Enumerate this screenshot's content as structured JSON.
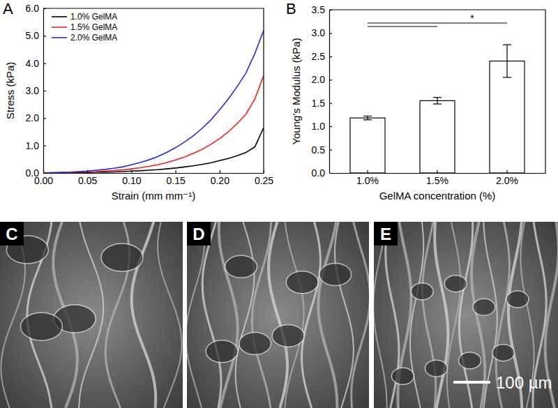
{
  "chart_data": [
    {
      "type": "line",
      "x_label": "Strain (mm mm⁻¹)",
      "y_label": "Stress (kPa)",
      "x": [
        0,
        0.01,
        0.02,
        0.03,
        0.04,
        0.05,
        0.06,
        0.07,
        0.08,
        0.09,
        0.1,
        0.11,
        0.12,
        0.13,
        0.14,
        0.15,
        0.16,
        0.17,
        0.18,
        0.19,
        0.2,
        0.21,
        0.22,
        0.23,
        0.24,
        0.25
      ],
      "series": [
        {
          "name": "1.0% GelMA",
          "color": "#000000",
          "values": [
            0,
            0,
            0.01,
            0.01,
            0.02,
            0.02,
            0.03,
            0.03,
            0.04,
            0.05,
            0.07,
            0.08,
            0.1,
            0.12,
            0.15,
            0.18,
            0.22,
            0.26,
            0.31,
            0.37,
            0.45,
            0.53,
            0.63,
            0.75,
            0.95,
            1.65
          ]
        },
        {
          "name": "1.5% GelMA",
          "color": "#e8231e",
          "values": [
            0,
            0.01,
            0.01,
            0.02,
            0.03,
            0.04,
            0.05,
            0.07,
            0.09,
            0.11,
            0.15,
            0.19,
            0.24,
            0.3,
            0.38,
            0.47,
            0.58,
            0.71,
            0.86,
            1.04,
            1.25,
            1.5,
            1.8,
            2.15,
            2.7,
            3.55
          ]
        },
        {
          "name": "2.0% GelMA",
          "color": "#2a2ad6",
          "values": [
            0,
            0.01,
            0.02,
            0.03,
            0.05,
            0.07,
            0.1,
            0.13,
            0.17,
            0.22,
            0.3,
            0.38,
            0.48,
            0.6,
            0.75,
            0.92,
            1.12,
            1.35,
            1.62,
            1.93,
            2.3,
            2.7,
            3.15,
            3.65,
            4.35,
            5.2
          ]
        }
      ],
      "xlim": [
        0,
        0.25
      ],
      "xticks": [
        {
          "value": 0,
          "label": "0.00"
        },
        0.05,
        {
          "value": 0.1,
          "label": "0.10"
        },
        0.15,
        {
          "value": 0.2,
          "label": "0.20"
        },
        0.25
      ],
      "ylim": [
        0,
        6
      ],
      "yticks": [
        {
          "value": 0,
          "label": "0.0"
        },
        {
          "value": 1,
          "label": "1.0"
        },
        {
          "value": 2,
          "label": "2.0"
        },
        {
          "value": 3,
          "label": "3.0"
        },
        {
          "value": 4,
          "label": "4.0"
        },
        {
          "value": 5,
          "label": "5.0"
        },
        {
          "value": 6,
          "label": "6.0"
        }
      ],
      "legend": "top-left",
      "grid": false
    },
    {
      "type": "bar",
      "x_label": "GelMA concentration (%)",
      "y_label": "Young's Modulus (kPa)",
      "categories": [
        "1.0%",
        "1.5%",
        "2.0%"
      ],
      "values": [
        1.18,
        1.55,
        2.4
      ],
      "errors": [
        0.04,
        0.07,
        0.35
      ],
      "color": "#ffffff",
      "ylim": [
        0,
        3.5
      ],
      "yticks": [
        {
          "value": 0,
          "label": "0.0"
        },
        0.5,
        {
          "value": 1,
          "label": "1.0"
        },
        1.5,
        {
          "value": 2,
          "label": "2.0"
        },
        2.5,
        {
          "value": 3,
          "label": "3.0"
        },
        3.5
      ],
      "annotations": [
        {
          "text": "*"
        }
      ],
      "grid": false
    }
  ],
  "figure": {
    "panel_labels": [
      "A",
      "B",
      "C",
      "D",
      "E"
    ],
    "scale_bar": "100 µm"
  }
}
